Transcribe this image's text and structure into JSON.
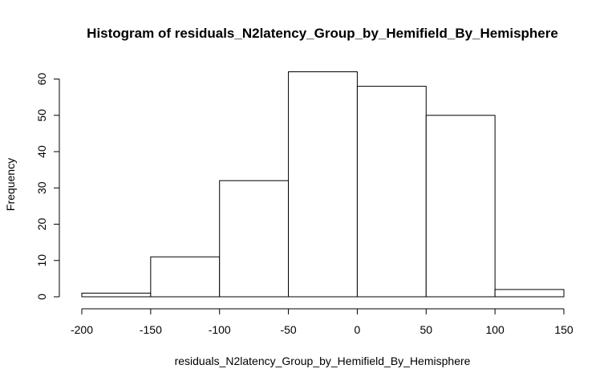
{
  "chart_data": {
    "type": "bar",
    "title": "Histogram of residuals_N2latency_Group_by_Hemifield_By_Hemisphere",
    "xlabel": "residuals_N2latency_Group_by_Hemifield_By_Hemisphere",
    "ylabel": "Frequency",
    "bins": [
      {
        "start": -200,
        "end": -150,
        "count": 1
      },
      {
        "start": -150,
        "end": -100,
        "count": 11
      },
      {
        "start": -100,
        "end": -50,
        "count": 32
      },
      {
        "start": -50,
        "end": 0,
        "count": 62
      },
      {
        "start": 0,
        "end": 50,
        "count": 58
      },
      {
        "start": 50,
        "end": 100,
        "count": 50
      },
      {
        "start": 100,
        "end": 150,
        "count": 2
      }
    ],
    "xlim": [
      -200,
      150
    ],
    "ylim": [
      0,
      62
    ],
    "x_ticks": [
      -200,
      -150,
      -100,
      -50,
      0,
      50,
      100,
      150
    ],
    "y_ticks": [
      0,
      10,
      20,
      30,
      40,
      50,
      60
    ],
    "x_tick_labels": [
      "-200",
      "-150",
      "-100",
      "-50",
      "0",
      "50",
      "100",
      "150"
    ],
    "y_tick_labels": [
      "0",
      "10",
      "20",
      "30",
      "40",
      "50",
      "60"
    ],
    "grid": false,
    "colors": {
      "bar_fill": "#ffffff",
      "bar_stroke": "#000000"
    }
  }
}
